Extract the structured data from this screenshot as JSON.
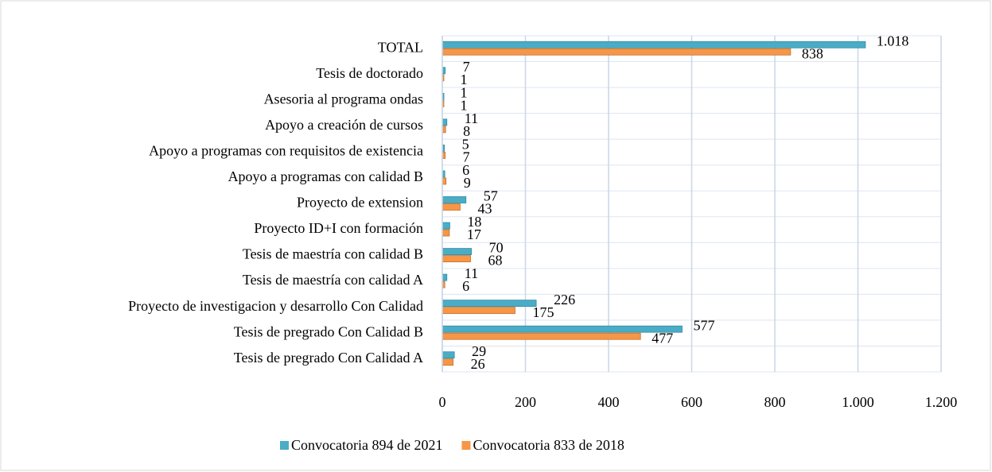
{
  "chart_data": {
    "type": "bar",
    "orientation": "horizontal",
    "categories": [
      "TOTAL",
      "Tesis de doctorado",
      "Asesoria al programa ondas",
      "Apoyo a creación de cursos",
      "Apoyo a programas con requisitos de existencia",
      "Apoyo a programas con calidad B",
      "Proyecto de extension",
      "Proyecto ID+I con formación",
      "Tesis de maestría con calidad B",
      "Tesis de maestría con calidad A",
      "Proyecto de investigacion y desarrollo Con Calidad",
      "Tesis de pregrado Con Calidad B",
      "Tesis de pregrado Con Calidad A"
    ],
    "series": [
      {
        "name": "Convocatoria 894 de 2021",
        "color": "#4bacc6",
        "values": [
          1018,
          7,
          1,
          11,
          5,
          6,
          57,
          18,
          70,
          11,
          226,
          577,
          29
        ],
        "value_labels": [
          "1.018",
          "7",
          "1",
          "11",
          "5",
          "6",
          "57",
          "18",
          "70",
          "11",
          "226",
          "577",
          "29"
        ]
      },
      {
        "name": "Convocatoria 833 de 2018",
        "color": "#f79646",
        "values": [
          838,
          1,
          1,
          8,
          7,
          9,
          43,
          17,
          68,
          6,
          175,
          477,
          26
        ]
      }
    ],
    "xlim": [
      0,
      1200
    ],
    "xticks": [
      0,
      200,
      400,
      600,
      800,
      {
        "value": 1000,
        "label": "1.000"
      },
      {
        "value": 1200,
        "label": "1.200"
      }
    ],
    "grid": true,
    "legend": "bottom"
  }
}
